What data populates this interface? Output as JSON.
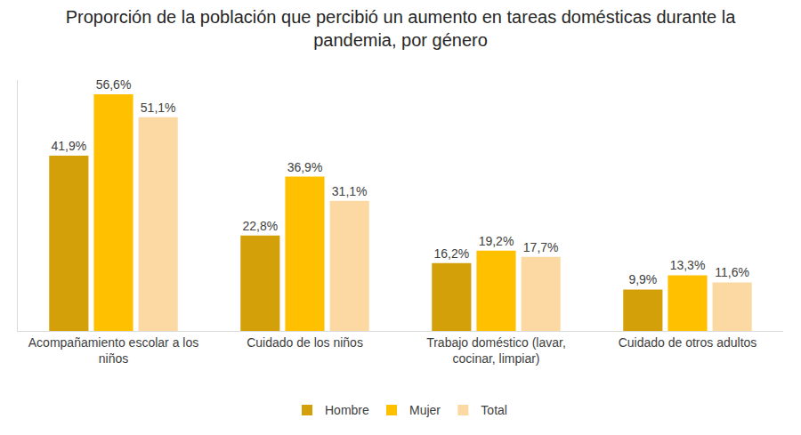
{
  "chart_data": {
    "type": "bar",
    "title": "Proporción de la población que percibió un aumento en tareas domésticas durante la\npandemia, por género",
    "categories": [
      "Acompañamiento escolar a los\nniños",
      "Cuidado de los niños",
      "Trabajo doméstico (lavar,\ncocinar, limpiar)",
      "Cuidado de otros adultos"
    ],
    "series": [
      {
        "name": "Hombre",
        "color": "#d4a00a",
        "values": [
          41.9,
          22.8,
          16.2,
          9.9
        ],
        "value_labels": [
          "41,9%",
          "22,8%",
          "16,2%",
          "9,9%"
        ]
      },
      {
        "name": "Mujer",
        "color": "#ffc000",
        "values": [
          56.6,
          36.9,
          19.2,
          13.3
        ],
        "value_labels": [
          "56,6%",
          "36,9%",
          "19,2%",
          "13,3%"
        ]
      },
      {
        "name": "Total",
        "color": "#fcd9a2",
        "values": [
          51.1,
          31.1,
          17.7,
          11.6
        ],
        "value_labels": [
          "51,1%",
          "31,1%",
          "17,7%",
          "11,6%"
        ]
      }
    ],
    "ylim": [
      0,
      60
    ],
    "yticks": [],
    "grid": false,
    "legend": "bottom",
    "data_labels": true,
    "tick_labels": "x"
  }
}
